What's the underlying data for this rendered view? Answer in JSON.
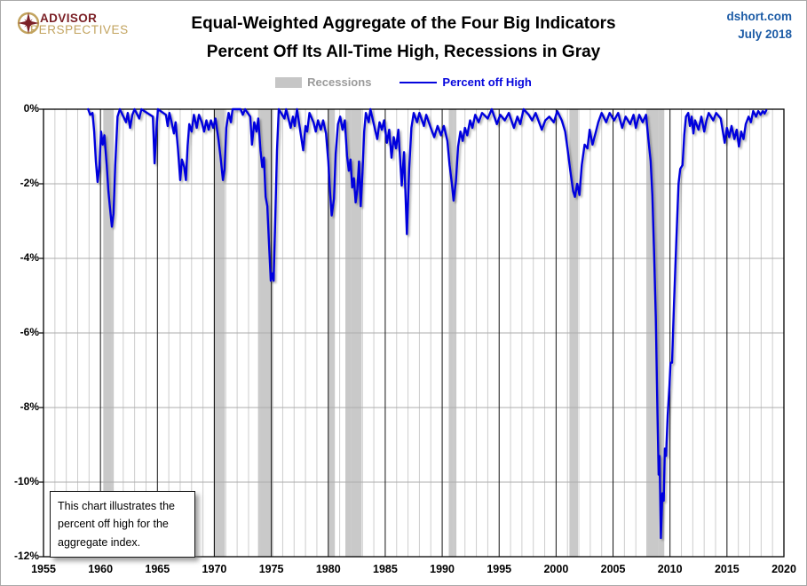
{
  "header": {
    "logo": {
      "line1": "ADVISOR",
      "line2": "PERSPECTIVES",
      "color_primary": "#7b2026",
      "color_secondary": "#c2a35e"
    },
    "title_line1": "Equal-Weighted Aggregate of the Four Big Indicators",
    "title_line2": "Percent Off Its All-Time High, Recessions in Gray",
    "source": "dshort.com",
    "date": "July 2018",
    "source_color": "#1d5ca6"
  },
  "legend": {
    "recessions_label": "Recessions",
    "series_label": "Percent off High",
    "recession_color": "#c6c6c6",
    "line_color": "#0505dd"
  },
  "annotation": {
    "text": "This chart illustrates the percent off high for the aggregate index."
  },
  "chart_data": {
    "type": "line",
    "title": "Equal-Weighted Aggregate of the Four Big Indicators — Percent Off Its All-Time High",
    "xlabel": "",
    "ylabel": "Percent off high",
    "xlim": [
      1955,
      2020
    ],
    "ylim": [
      -12,
      0
    ],
    "grid": true,
    "legend_position": "top",
    "x_ticks": [
      1955,
      1960,
      1965,
      1970,
      1975,
      1980,
      1985,
      1990,
      1995,
      2000,
      2005,
      2010,
      2015,
      2020
    ],
    "y_ticks": [
      [
        0,
        "0%"
      ],
      [
        -2,
        "-2%"
      ],
      [
        -4,
        "-4%"
      ],
      [
        -6,
        "-6%"
      ],
      [
        -8,
        "-8%"
      ],
      [
        -10,
        "-10%"
      ],
      [
        -12,
        "-12%"
      ]
    ],
    "recessions": [
      [
        1960.25,
        1961.17
      ],
      [
        1969.92,
        1970.92
      ],
      [
        1973.83,
        1975.17
      ],
      [
        1980.0,
        1980.58
      ],
      [
        1981.5,
        1982.92
      ],
      [
        1990.58,
        1991.25
      ],
      [
        2001.17,
        2001.92
      ],
      [
        2007.92,
        2009.5
      ]
    ],
    "series": [
      {
        "name": "Percent off High",
        "color": "#0505dd",
        "points": [
          [
            1958.92,
            0
          ],
          [
            1959.1,
            -0.15
          ],
          [
            1959.3,
            -0.1
          ],
          [
            1959.45,
            -0.6
          ],
          [
            1959.6,
            -1.4
          ],
          [
            1959.75,
            -1.95
          ],
          [
            1959.92,
            -1.5
          ],
          [
            1960.05,
            -0.6
          ],
          [
            1960.2,
            -0.95
          ],
          [
            1960.35,
            -0.7
          ],
          [
            1960.55,
            -1.5
          ],
          [
            1960.7,
            -2.2
          ],
          [
            1960.85,
            -2.7
          ],
          [
            1961.0,
            -3.15
          ],
          [
            1961.15,
            -2.8
          ],
          [
            1961.3,
            -1.5
          ],
          [
            1961.5,
            -0.2
          ],
          [
            1961.7,
            0
          ],
          [
            1962.25,
            -0.35
          ],
          [
            1962.4,
            -0.1
          ],
          [
            1962.6,
            -0.5
          ],
          [
            1962.8,
            -0.15
          ],
          [
            1963.0,
            0
          ],
          [
            1963.4,
            -0.25
          ],
          [
            1963.6,
            0
          ],
          [
            1964.6,
            -0.2
          ],
          [
            1964.75,
            -1.45
          ],
          [
            1964.9,
            -0.6
          ],
          [
            1965.05,
            0
          ],
          [
            1965.75,
            -0.15
          ],
          [
            1965.9,
            -0.45
          ],
          [
            1966.05,
            -0.1
          ],
          [
            1966.25,
            -0.35
          ],
          [
            1966.45,
            -0.65
          ],
          [
            1966.6,
            -0.35
          ],
          [
            1966.8,
            -1.05
          ],
          [
            1967.0,
            -1.9
          ],
          [
            1967.15,
            -1.35
          ],
          [
            1967.35,
            -1.55
          ],
          [
            1967.5,
            -1.9
          ],
          [
            1967.65,
            -1.0
          ],
          [
            1967.8,
            -0.4
          ],
          [
            1968.0,
            -0.6
          ],
          [
            1968.2,
            -0.15
          ],
          [
            1968.45,
            -0.5
          ],
          [
            1968.65,
            -0.15
          ],
          [
            1968.9,
            -0.35
          ],
          [
            1969.1,
            -0.6
          ],
          [
            1969.3,
            -0.3
          ],
          [
            1969.5,
            -0.55
          ],
          [
            1969.7,
            -0.3
          ],
          [
            1969.9,
            -0.5
          ],
          [
            1970.1,
            -0.25
          ],
          [
            1970.35,
            -0.8
          ],
          [
            1970.55,
            -1.3
          ],
          [
            1970.75,
            -1.9
          ],
          [
            1970.9,
            -1.6
          ],
          [
            1971.05,
            -0.5
          ],
          [
            1971.25,
            -0.1
          ],
          [
            1971.45,
            -0.35
          ],
          [
            1971.6,
            0
          ],
          [
            1972.3,
            0
          ],
          [
            1972.5,
            -0.15
          ],
          [
            1972.7,
            0
          ],
          [
            1973.15,
            -0.2
          ],
          [
            1973.3,
            -0.95
          ],
          [
            1973.5,
            -0.35
          ],
          [
            1973.7,
            -0.6
          ],
          [
            1973.85,
            -0.25
          ],
          [
            1974.05,
            -1.1
          ],
          [
            1974.2,
            -1.55
          ],
          [
            1974.35,
            -1.3
          ],
          [
            1974.5,
            -2.35
          ],
          [
            1974.65,
            -2.6
          ],
          [
            1974.8,
            -3.6
          ],
          [
            1974.95,
            -4.6
          ],
          [
            1975.1,
            -4.4
          ],
          [
            1975.2,
            -4.6
          ],
          [
            1975.35,
            -2.9
          ],
          [
            1975.5,
            -1.1
          ],
          [
            1975.65,
            0
          ],
          [
            1976.15,
            -0.25
          ],
          [
            1976.3,
            0
          ],
          [
            1976.7,
            -0.5
          ],
          [
            1976.9,
            -0.2
          ],
          [
            1977.05,
            -0.45
          ],
          [
            1977.25,
            0
          ],
          [
            1977.8,
            -1.1
          ],
          [
            1978.0,
            -0.45
          ],
          [
            1978.15,
            -0.6
          ],
          [
            1978.35,
            -0.1
          ],
          [
            1978.7,
            -0.35
          ],
          [
            1978.9,
            -0.6
          ],
          [
            1979.1,
            -0.3
          ],
          [
            1979.35,
            -0.55
          ],
          [
            1979.55,
            -0.3
          ],
          [
            1979.8,
            -0.65
          ],
          [
            1980.0,
            -1.4
          ],
          [
            1980.15,
            -2.2
          ],
          [
            1980.3,
            -2.85
          ],
          [
            1980.5,
            -2.4
          ],
          [
            1980.65,
            -1.2
          ],
          [
            1980.85,
            -0.4
          ],
          [
            1981.05,
            -0.2
          ],
          [
            1981.25,
            -0.55
          ],
          [
            1981.45,
            -0.3
          ],
          [
            1981.65,
            -1.25
          ],
          [
            1981.8,
            -1.65
          ],
          [
            1981.95,
            -1.35
          ],
          [
            1982.1,
            -2.1
          ],
          [
            1982.25,
            -1.85
          ],
          [
            1982.4,
            -2.5
          ],
          [
            1982.55,
            -2.15
          ],
          [
            1982.7,
            -1.4
          ],
          [
            1982.85,
            -2.6
          ],
          [
            1983.0,
            -1.7
          ],
          [
            1983.15,
            -0.6
          ],
          [
            1983.3,
            -0.1
          ],
          [
            1983.55,
            -0.35
          ],
          [
            1983.7,
            0
          ],
          [
            1984.3,
            -0.8
          ],
          [
            1984.5,
            -0.35
          ],
          [
            1984.7,
            -0.55
          ],
          [
            1984.9,
            -0.3
          ],
          [
            1985.15,
            -0.9
          ],
          [
            1985.35,
            -0.55
          ],
          [
            1985.55,
            -1.3
          ],
          [
            1985.75,
            -0.75
          ],
          [
            1985.95,
            -1.05
          ],
          [
            1986.15,
            -0.55
          ],
          [
            1986.45,
            -2.05
          ],
          [
            1986.65,
            -1.15
          ],
          [
            1986.9,
            -3.35
          ],
          [
            1987.1,
            -1.6
          ],
          [
            1987.3,
            -0.5
          ],
          [
            1987.5,
            -0.1
          ],
          [
            1987.8,
            -0.35
          ],
          [
            1988.0,
            -0.1
          ],
          [
            1988.4,
            -0.45
          ],
          [
            1988.6,
            -0.15
          ],
          [
            1989.0,
            -0.5
          ],
          [
            1989.3,
            -0.75
          ],
          [
            1989.6,
            -0.45
          ],
          [
            1989.9,
            -0.7
          ],
          [
            1990.15,
            -0.45
          ],
          [
            1990.45,
            -0.85
          ],
          [
            1990.65,
            -1.5
          ],
          [
            1990.85,
            -2.0
          ],
          [
            1991.0,
            -2.45
          ],
          [
            1991.2,
            -1.95
          ],
          [
            1991.4,
            -1.0
          ],
          [
            1991.6,
            -0.6
          ],
          [
            1991.8,
            -0.85
          ],
          [
            1992.0,
            -0.5
          ],
          [
            1992.2,
            -0.7
          ],
          [
            1992.45,
            -0.3
          ],
          [
            1992.65,
            -0.5
          ],
          [
            1992.9,
            -0.15
          ],
          [
            1993.2,
            -0.35
          ],
          [
            1993.5,
            -0.1
          ],
          [
            1994.0,
            -0.25
          ],
          [
            1994.35,
            0
          ],
          [
            1994.8,
            -0.4
          ],
          [
            1995.1,
            -0.15
          ],
          [
            1995.5,
            -0.3
          ],
          [
            1995.85,
            -0.1
          ],
          [
            1996.3,
            -0.5
          ],
          [
            1996.6,
            -0.2
          ],
          [
            1996.85,
            -0.4
          ],
          [
            1997.15,
            0
          ],
          [
            1997.6,
            -0.15
          ],
          [
            1997.9,
            -0.3
          ],
          [
            1998.2,
            -0.1
          ],
          [
            1998.75,
            -0.55
          ],
          [
            1999.05,
            -0.3
          ],
          [
            1999.4,
            -0.2
          ],
          [
            1999.8,
            -0.35
          ],
          [
            2000.1,
            -0.05
          ],
          [
            2000.5,
            -0.3
          ],
          [
            2000.8,
            -0.6
          ],
          [
            2001.0,
            -1.05
          ],
          [
            2001.25,
            -1.65
          ],
          [
            2001.5,
            -2.2
          ],
          [
            2001.65,
            -2.35
          ],
          [
            2001.85,
            -2.0
          ],
          [
            2002.05,
            -2.3
          ],
          [
            2002.25,
            -1.5
          ],
          [
            2002.5,
            -0.95
          ],
          [
            2002.75,
            -1.05
          ],
          [
            2002.95,
            -0.55
          ],
          [
            2003.2,
            -0.95
          ],
          [
            2003.45,
            -0.65
          ],
          [
            2003.7,
            -0.35
          ],
          [
            2004.0,
            -0.1
          ],
          [
            2004.4,
            -0.35
          ],
          [
            2004.7,
            -0.1
          ],
          [
            2005.1,
            -0.3
          ],
          [
            2005.45,
            -0.1
          ],
          [
            2005.8,
            -0.5
          ],
          [
            2006.1,
            -0.2
          ],
          [
            2006.5,
            -0.4
          ],
          [
            2006.8,
            -0.15
          ],
          [
            2007.0,
            -0.5
          ],
          [
            2007.3,
            -0.15
          ],
          [
            2007.6,
            -0.35
          ],
          [
            2007.9,
            -0.15
          ],
          [
            2008.1,
            -0.8
          ],
          [
            2008.3,
            -1.4
          ],
          [
            2008.45,
            -2.3
          ],
          [
            2008.6,
            -3.8
          ],
          [
            2008.75,
            -5.6
          ],
          [
            2008.9,
            -8.2
          ],
          [
            2009.0,
            -9.8
          ],
          [
            2009.08,
            -9.3
          ],
          [
            2009.2,
            -11.5
          ],
          [
            2009.33,
            -10.3
          ],
          [
            2009.45,
            -10.5
          ],
          [
            2009.55,
            -9.1
          ],
          [
            2009.65,
            -9.3
          ],
          [
            2009.8,
            -8.2
          ],
          [
            2009.95,
            -7.4
          ],
          [
            2010.05,
            -6.8
          ],
          [
            2010.18,
            -6.8
          ],
          [
            2010.35,
            -5.2
          ],
          [
            2010.55,
            -3.6
          ],
          [
            2010.75,
            -2.0
          ],
          [
            2010.9,
            -1.6
          ],
          [
            2011.1,
            -1.5
          ],
          [
            2011.25,
            -0.7
          ],
          [
            2011.4,
            -0.2
          ],
          [
            2011.6,
            -0.1
          ],
          [
            2011.75,
            -0.45
          ],
          [
            2011.9,
            -0.2
          ],
          [
            2012.05,
            -0.65
          ],
          [
            2012.2,
            -0.3
          ],
          [
            2012.5,
            -0.55
          ],
          [
            2012.75,
            -0.2
          ],
          [
            2013.0,
            -0.6
          ],
          [
            2013.2,
            -0.3
          ],
          [
            2013.4,
            -0.1
          ],
          [
            2013.8,
            -0.3
          ],
          [
            2014.05,
            -0.1
          ],
          [
            2014.45,
            -0.25
          ],
          [
            2014.8,
            -0.9
          ],
          [
            2015.0,
            -0.5
          ],
          [
            2015.2,
            -0.75
          ],
          [
            2015.4,
            -0.45
          ],
          [
            2015.65,
            -0.8
          ],
          [
            2015.85,
            -0.55
          ],
          [
            2016.05,
            -1.0
          ],
          [
            2016.25,
            -0.6
          ],
          [
            2016.45,
            -0.8
          ],
          [
            2016.65,
            -0.4
          ],
          [
            2016.9,
            -0.2
          ],
          [
            2017.1,
            -0.35
          ],
          [
            2017.3,
            -0.05
          ],
          [
            2017.55,
            -0.2
          ],
          [
            2017.75,
            -0.05
          ],
          [
            2017.95,
            -0.15
          ],
          [
            2018.15,
            -0.05
          ],
          [
            2018.3,
            -0.12
          ],
          [
            2018.45,
            -0.03
          ]
        ]
      }
    ],
    "colors": {
      "recession_band": "#c9c9c9",
      "minor_gridline": "#cdcdcd",
      "major_gridline": "#141414",
      "horizontal_gridline": "#adadad",
      "axis": "#000000"
    }
  }
}
